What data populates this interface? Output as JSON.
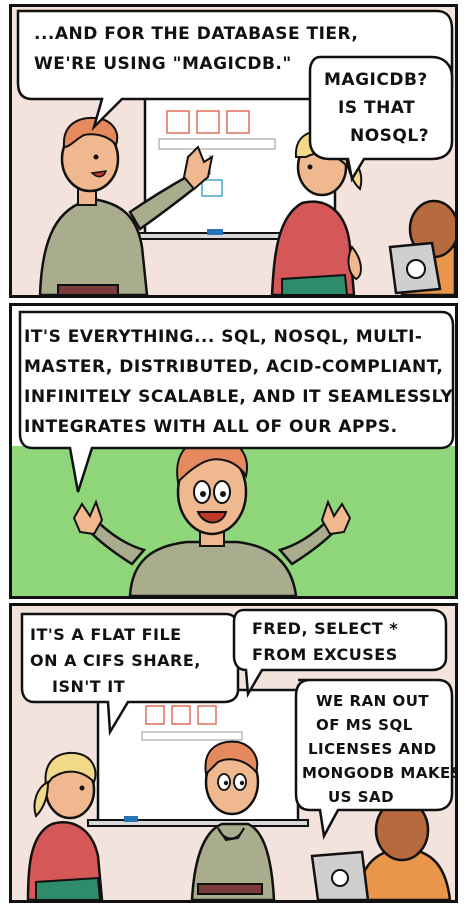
{
  "panels": [
    {
      "bubbles": [
        {
          "lines": [
            "...AND FOR THE DATABASE TIER,",
            "WE'RE USING \"MAGICDB.\""
          ]
        },
        {
          "lines": [
            "MAGICDB?",
            "IS THAT",
            "NOSQL?"
          ]
        }
      ]
    },
    {
      "bubbles": [
        {
          "lines": [
            "IT'S EVERYTHING... SQL, NOSQL, MULTI-",
            "MASTER, DISTRIBUTED, ACID-COMPLIANT,",
            "INFINITELY SCALABLE, AND IT SEAMLESSLY",
            "INTEGRATES WITH ALL OF OUR APPS."
          ]
        }
      ]
    },
    {
      "bubbles": [
        {
          "lines": [
            "IT'S A FLAT FILE",
            "ON A CIFS SHARE,",
            "ISN'T IT"
          ]
        },
        {
          "lines": [
            "FRED, SELECT *",
            "FROM EXCUSES"
          ]
        },
        {
          "lines": [
            "WE RAN OUT",
            "OF MS SQL",
            "LICENSES AND",
            "MONGODB MAKES",
            "US SAD"
          ]
        }
      ]
    }
  ],
  "colors": {
    "wall": "#f3e3dc",
    "green_bg": "#8fd67a",
    "whiteboard": "#ffffff",
    "skin": "#f0b88f",
    "hair_red": "#e58a5e",
    "hair_blonde": "#f2d889",
    "shirt_olive": "#a9ad8e",
    "shirt_red": "#d65757",
    "pants_green": "#2f8c6a",
    "skin_dark": "#b86a3f",
    "shirt_orange": "#e9954a",
    "ink": "#111111"
  }
}
